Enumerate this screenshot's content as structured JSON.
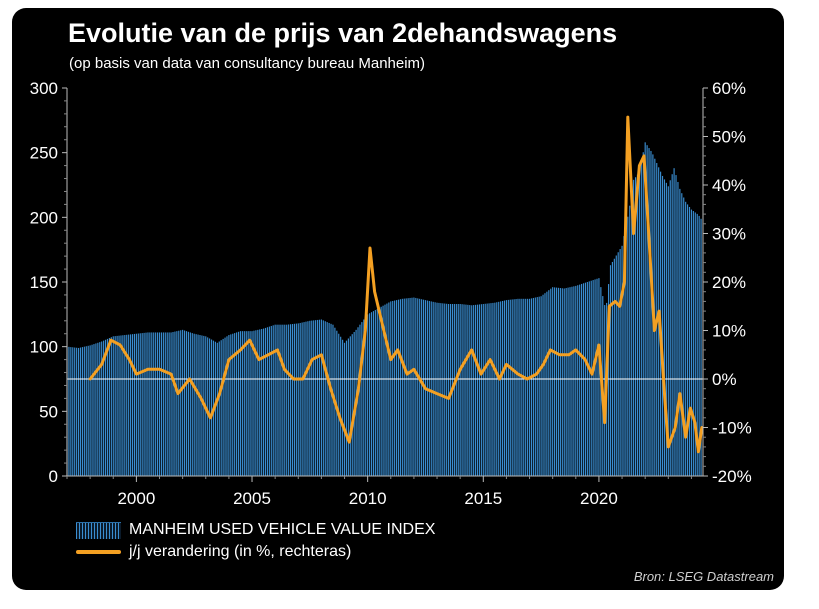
{
  "title": "Evolutie van de prijs van 2dehandswagens",
  "subtitle": "(op basis van data van consultancy bureau Manheim)",
  "source": "Bron: LSEG Datastream",
  "colors": {
    "background": "#000000",
    "bars": "#3a8dd0",
    "line": "#f4a022",
    "zero_line": "#ffffff"
  },
  "chart_data": {
    "type": "bar+line",
    "title": "Evolutie van de prijs van 2dehandswagens",
    "subtitle": "(op basis van data van consultancy bureau Manheim)",
    "x_ticks": [
      "2000",
      "2005",
      "2010",
      "2015",
      "2020"
    ],
    "xlim": [
      1997,
      2024.5
    ],
    "y_left": {
      "ylim": [
        0,
        300
      ],
      "ticks": [
        "0",
        "50",
        "100",
        "150",
        "200",
        "250",
        "300"
      ]
    },
    "y_right": {
      "ylim": [
        -20,
        60
      ],
      "ticks": [
        "-20%",
        "-10%",
        "0%",
        "10%",
        "20%",
        "30%",
        "40%",
        "50%",
        "60%"
      ]
    },
    "grid": false,
    "legend_position": "bottom-left",
    "series": [
      {
        "name": "MANHEIM USED VEHICLE VALUE INDEX",
        "type": "bar",
        "axis": "left",
        "points": [
          [
            1997.0,
            100
          ],
          [
            1997.5,
            99
          ],
          [
            1998.0,
            101
          ],
          [
            1998.5,
            104
          ],
          [
            1999.0,
            108
          ],
          [
            1999.5,
            109
          ],
          [
            2000.0,
            110
          ],
          [
            2000.5,
            111
          ],
          [
            2001.0,
            111
          ],
          [
            2001.5,
            111
          ],
          [
            2002.0,
            113
          ],
          [
            2002.5,
            110
          ],
          [
            2003.0,
            108
          ],
          [
            2003.5,
            103
          ],
          [
            2004.0,
            109
          ],
          [
            2004.5,
            112
          ],
          [
            2005.0,
            112
          ],
          [
            2005.5,
            114
          ],
          [
            2006.0,
            117
          ],
          [
            2006.5,
            117
          ],
          [
            2007.0,
            118
          ],
          [
            2007.5,
            120
          ],
          [
            2008.0,
            121
          ],
          [
            2008.5,
            117
          ],
          [
            2009.0,
            103
          ],
          [
            2009.5,
            113
          ],
          [
            2010.0,
            125
          ],
          [
            2010.5,
            130
          ],
          [
            2011.0,
            135
          ],
          [
            2011.5,
            137
          ],
          [
            2012.0,
            138
          ],
          [
            2012.5,
            136
          ],
          [
            2013.0,
            134
          ],
          [
            2013.5,
            133
          ],
          [
            2014.0,
            133
          ],
          [
            2014.5,
            132
          ],
          [
            2015.0,
            133
          ],
          [
            2015.5,
            134
          ],
          [
            2016.0,
            136
          ],
          [
            2016.5,
            137
          ],
          [
            2017.0,
            137
          ],
          [
            2017.5,
            139
          ],
          [
            2018.0,
            146
          ],
          [
            2018.5,
            145
          ],
          [
            2019.0,
            147
          ],
          [
            2019.5,
            150
          ],
          [
            2020.0,
            153
          ],
          [
            2020.3,
            128
          ],
          [
            2020.5,
            163
          ],
          [
            2021.0,
            178
          ],
          [
            2021.3,
            205
          ],
          [
            2021.5,
            229
          ],
          [
            2021.75,
            235
          ],
          [
            2022.0,
            258
          ],
          [
            2022.3,
            250
          ],
          [
            2022.5,
            242
          ],
          [
            2022.75,
            232
          ],
          [
            2023.0,
            224
          ],
          [
            2023.25,
            238
          ],
          [
            2023.5,
            222
          ],
          [
            2023.75,
            212
          ],
          [
            2024.0,
            206
          ],
          [
            2024.3,
            202
          ],
          [
            2024.45,
            198
          ]
        ]
      },
      {
        "name": "j/j verandering (in %, rechteras)",
        "type": "line",
        "axis": "right",
        "points": [
          [
            1998.0,
            0
          ],
          [
            1998.5,
            3
          ],
          [
            1998.9,
            8
          ],
          [
            1999.3,
            7
          ],
          [
            1999.7,
            4
          ],
          [
            2000.0,
            1
          ],
          [
            2000.5,
            2
          ],
          [
            2001.0,
            2
          ],
          [
            2001.5,
            1
          ],
          [
            2001.8,
            -3
          ],
          [
            2002.3,
            0
          ],
          [
            2002.8,
            -4
          ],
          [
            2003.2,
            -8
          ],
          [
            2003.6,
            -3
          ],
          [
            2004.0,
            4
          ],
          [
            2004.5,
            6
          ],
          [
            2004.9,
            8
          ],
          [
            2005.3,
            4
          ],
          [
            2005.7,
            5
          ],
          [
            2006.1,
            6
          ],
          [
            2006.4,
            2
          ],
          [
            2006.8,
            0
          ],
          [
            2007.2,
            0
          ],
          [
            2007.6,
            4
          ],
          [
            2008.0,
            5
          ],
          [
            2008.4,
            -2
          ],
          [
            2008.8,
            -8
          ],
          [
            2009.2,
            -13
          ],
          [
            2009.6,
            -2
          ],
          [
            2009.9,
            10
          ],
          [
            2010.1,
            27
          ],
          [
            2010.3,
            18
          ],
          [
            2010.7,
            10
          ],
          [
            2011.0,
            4
          ],
          [
            2011.3,
            6
          ],
          [
            2011.7,
            1
          ],
          [
            2012.0,
            2
          ],
          [
            2012.5,
            -2
          ],
          [
            2013.0,
            -3
          ],
          [
            2013.5,
            -4
          ],
          [
            2014.0,
            2
          ],
          [
            2014.5,
            6
          ],
          [
            2014.9,
            1
          ],
          [
            2015.3,
            4
          ],
          [
            2015.7,
            0
          ],
          [
            2016.0,
            3
          ],
          [
            2016.5,
            1
          ],
          [
            2016.9,
            0
          ],
          [
            2017.3,
            1
          ],
          [
            2017.6,
            3
          ],
          [
            2017.9,
            6
          ],
          [
            2018.3,
            5
          ],
          [
            2018.7,
            5
          ],
          [
            2019.0,
            6
          ],
          [
            2019.4,
            4
          ],
          [
            2019.7,
            1
          ],
          [
            2020.0,
            7
          ],
          [
            2020.25,
            -9
          ],
          [
            2020.45,
            15
          ],
          [
            2020.7,
            16
          ],
          [
            2020.9,
            15
          ],
          [
            2021.1,
            20
          ],
          [
            2021.25,
            54
          ],
          [
            2021.5,
            30
          ],
          [
            2021.75,
            44
          ],
          [
            2021.95,
            46
          ],
          [
            2022.15,
            30
          ],
          [
            2022.4,
            10
          ],
          [
            2022.6,
            14
          ],
          [
            2022.85,
            -4
          ],
          [
            2023.0,
            -14
          ],
          [
            2023.3,
            -10
          ],
          [
            2023.5,
            -3
          ],
          [
            2023.75,
            -12
          ],
          [
            2023.95,
            -6
          ],
          [
            2024.15,
            -9
          ],
          [
            2024.3,
            -15
          ],
          [
            2024.45,
            -10
          ]
        ]
      }
    ]
  }
}
